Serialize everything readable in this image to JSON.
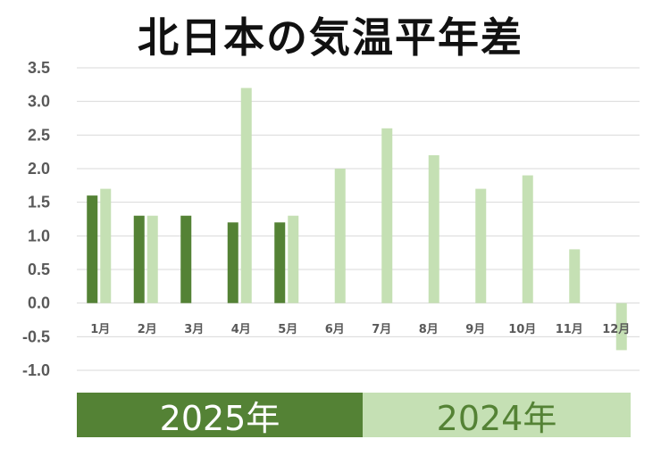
{
  "chart_data": {
    "type": "bar",
    "title": "北日本の気温平年差",
    "xlabel": "",
    "ylabel": "",
    "categories": [
      "1月",
      "2月",
      "3月",
      "4月",
      "5月",
      "6月",
      "7月",
      "8月",
      "9月",
      "10月",
      "11月",
      "12月"
    ],
    "series": [
      {
        "name": "2025年",
        "color": "#548235",
        "values": [
          1.6,
          1.3,
          1.3,
          1.2,
          1.2,
          null,
          null,
          null,
          null,
          null,
          null,
          null
        ]
      },
      {
        "name": "2024年",
        "color": "#C5E0B4",
        "values": [
          1.7,
          1.3,
          null,
          3.2,
          1.3,
          2.0,
          2.6,
          2.2,
          1.7,
          1.9,
          0.8,
          -0.7
        ]
      }
    ],
    "yticks": [
      "3.5",
      "3.0",
      "2.5",
      "2.0",
      "1.5",
      "1.0",
      "0.5",
      "0.0",
      "-0.5",
      "-1.0"
    ],
    "ylim": [
      -1.0,
      3.5
    ],
    "grid": true,
    "legend_position": "bottom",
    "legend": {
      "s2025": {
        "label": "2025年",
        "bg": "#548235",
        "text": "#ffffff"
      },
      "s2024": {
        "label": "2024年",
        "bg": "#C5E0B4",
        "text": "#548235"
      }
    }
  }
}
